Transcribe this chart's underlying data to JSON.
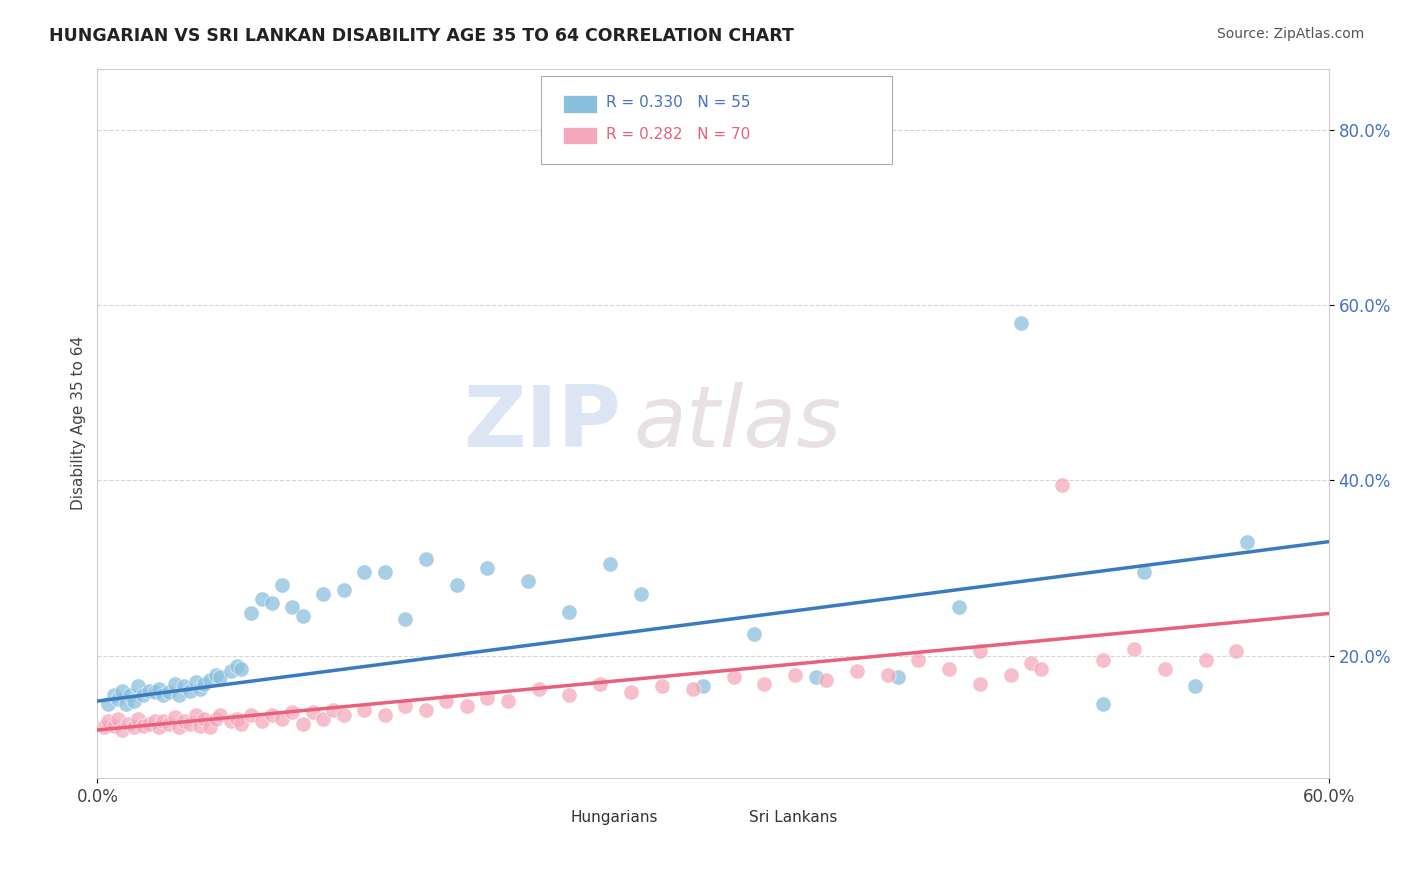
{
  "title": "HUNGARIAN VS SRI LANKAN DISABILITY AGE 35 TO 64 CORRELATION CHART",
  "source": "Source: ZipAtlas.com",
  "xlim": [
    0.0,
    0.6
  ],
  "ylim": [
    0.06,
    0.87
  ],
  "ylabel": "Disability Age 35 to 64",
  "color_hungarian": "#8bbfde",
  "color_srilankan": "#f5a8bc",
  "color_line_hungarian": "#3a7bbf",
  "color_line_srilankan": "#e8607a",
  "legend_text1": "R = 0.330   N = 55",
  "legend_text2": "R = 0.282   N = 70",
  "watermark_zip": "ZIP",
  "watermark_atlas": "atlas",
  "hungarian_x": [
    0.005,
    0.008,
    0.01,
    0.012,
    0.014,
    0.016,
    0.018,
    0.02,
    0.022,
    0.025,
    0.028,
    0.03,
    0.032,
    0.035,
    0.038,
    0.04,
    0.042,
    0.045,
    0.048,
    0.05,
    0.052,
    0.055,
    0.058,
    0.06,
    0.065,
    0.068,
    0.07,
    0.075,
    0.08,
    0.085,
    0.09,
    0.095,
    0.1,
    0.11,
    0.12,
    0.13,
    0.14,
    0.15,
    0.16,
    0.175,
    0.19,
    0.21,
    0.23,
    0.25,
    0.265,
    0.295,
    0.32,
    0.35,
    0.39,
    0.42,
    0.45,
    0.49,
    0.51,
    0.535,
    0.56
  ],
  "hungarian_y": [
    0.145,
    0.155,
    0.15,
    0.16,
    0.145,
    0.155,
    0.148,
    0.165,
    0.155,
    0.16,
    0.158,
    0.162,
    0.155,
    0.158,
    0.168,
    0.155,
    0.165,
    0.16,
    0.17,
    0.162,
    0.168,
    0.172,
    0.178,
    0.175,
    0.182,
    0.188,
    0.185,
    0.248,
    0.265,
    0.26,
    0.28,
    0.255,
    0.245,
    0.27,
    0.275,
    0.295,
    0.295,
    0.242,
    0.31,
    0.28,
    0.3,
    0.285,
    0.25,
    0.305,
    0.27,
    0.165,
    0.225,
    0.175,
    0.175,
    0.255,
    0.58,
    0.145,
    0.295,
    0.165,
    0.33
  ],
  "srilankan_x": [
    0.003,
    0.005,
    0.008,
    0.01,
    0.012,
    0.015,
    0.018,
    0.02,
    0.022,
    0.025,
    0.028,
    0.03,
    0.032,
    0.035,
    0.038,
    0.04,
    0.042,
    0.045,
    0.048,
    0.05,
    0.052,
    0.055,
    0.058,
    0.06,
    0.065,
    0.068,
    0.07,
    0.075,
    0.08,
    0.085,
    0.09,
    0.095,
    0.1,
    0.105,
    0.11,
    0.115,
    0.12,
    0.13,
    0.14,
    0.15,
    0.16,
    0.17,
    0.18,
    0.19,
    0.2,
    0.215,
    0.23,
    0.245,
    0.26,
    0.275,
    0.29,
    0.31,
    0.325,
    0.34,
    0.355,
    0.37,
    0.385,
    0.4,
    0.415,
    0.43,
    0.455,
    0.47,
    0.49,
    0.505,
    0.52,
    0.54,
    0.555,
    0.43,
    0.445,
    0.46
  ],
  "srilankan_y": [
    0.118,
    0.125,
    0.12,
    0.128,
    0.115,
    0.122,
    0.118,
    0.128,
    0.12,
    0.122,
    0.125,
    0.118,
    0.125,
    0.122,
    0.13,
    0.118,
    0.125,
    0.122,
    0.132,
    0.12,
    0.128,
    0.118,
    0.128,
    0.132,
    0.125,
    0.128,
    0.122,
    0.132,
    0.125,
    0.132,
    0.128,
    0.135,
    0.122,
    0.135,
    0.128,
    0.138,
    0.132,
    0.138,
    0.132,
    0.142,
    0.138,
    0.148,
    0.142,
    0.152,
    0.148,
    0.162,
    0.155,
    0.168,
    0.158,
    0.165,
    0.162,
    0.175,
    0.168,
    0.178,
    0.172,
    0.182,
    0.178,
    0.195,
    0.185,
    0.205,
    0.192,
    0.395,
    0.195,
    0.208,
    0.185,
    0.195,
    0.205,
    0.168,
    0.178,
    0.185
  ],
  "trend_h_x0": 0.0,
  "trend_h_y0": 0.148,
  "trend_h_x1": 0.6,
  "trend_h_y1": 0.33,
  "trend_s_x0": 0.0,
  "trend_s_y0": 0.115,
  "trend_s_x1": 0.6,
  "trend_s_y1": 0.248
}
